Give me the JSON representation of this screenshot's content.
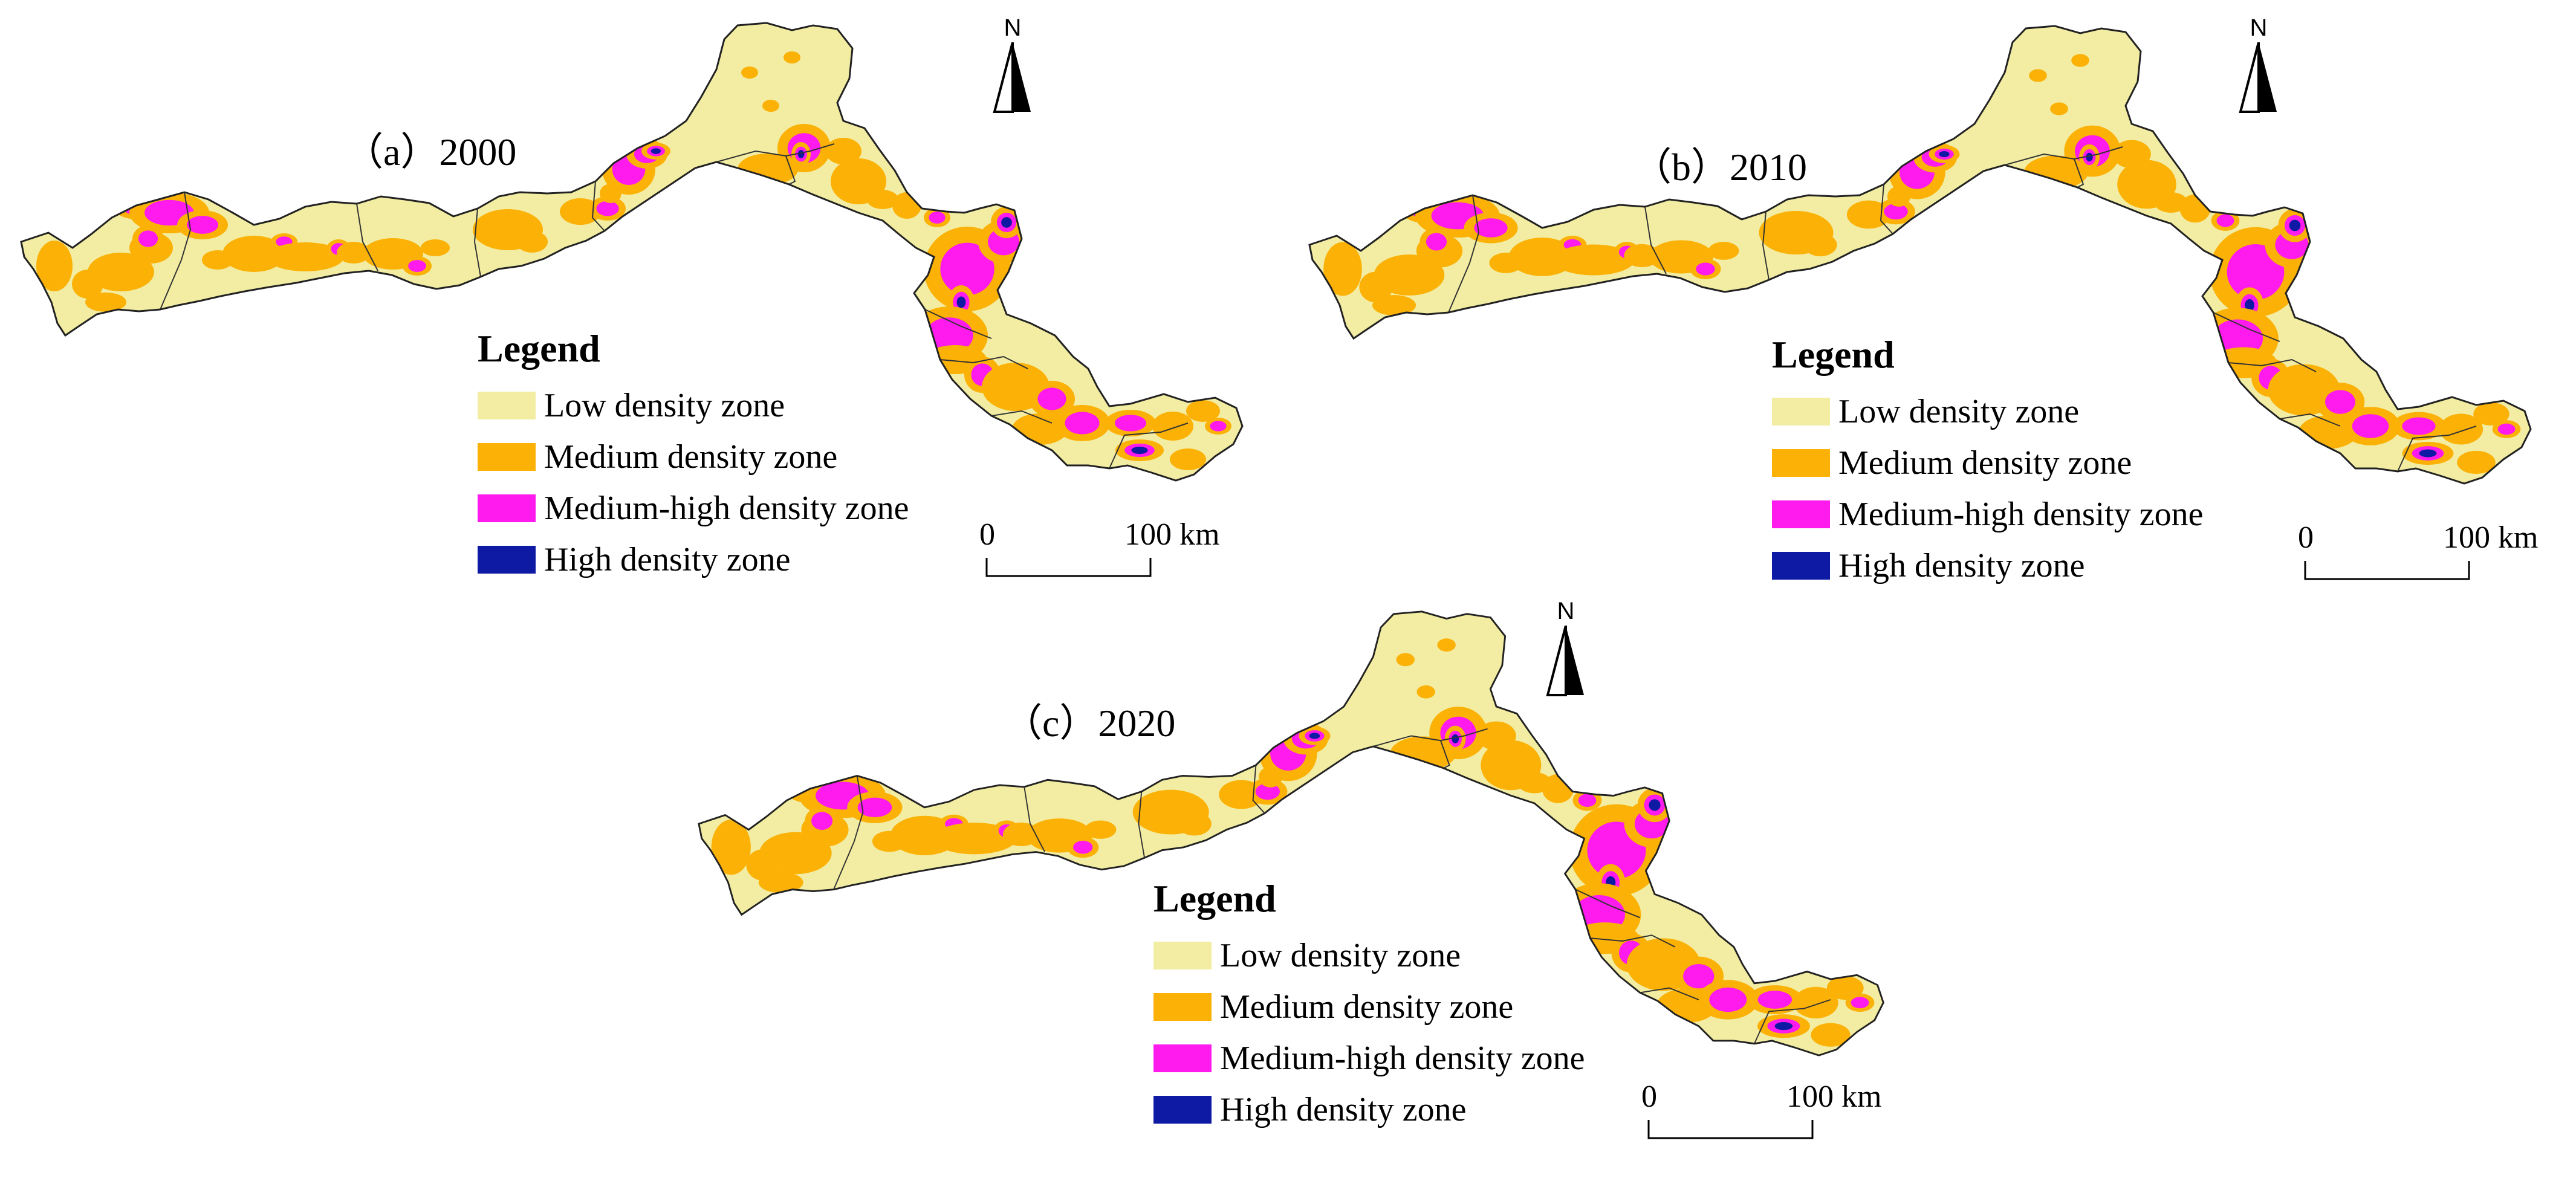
{
  "panels": [
    {
      "id": "a",
      "title": "（a）2000",
      "north_label": "N",
      "legend": {
        "title": "Legend",
        "items": [
          {
            "label": "Low density zone",
            "color": "#f2eda2"
          },
          {
            "label": "Medium density zone",
            "color": "#fbb106"
          },
          {
            "label": "Medium-high density zone",
            "color": "#ff1aee"
          },
          {
            "label": "High density zone",
            "color": "#0f1aa4"
          }
        ]
      },
      "scale": {
        "zero": "0",
        "distance": "100 km"
      }
    },
    {
      "id": "b",
      "title": "（b）2010",
      "north_label": "N",
      "legend": {
        "title": "Legend",
        "items": [
          {
            "label": "Low density zone",
            "color": "#f2eda2"
          },
          {
            "label": "Medium density zone",
            "color": "#fbb106"
          },
          {
            "label": "Medium-high density zone",
            "color": "#ff1aee"
          },
          {
            "label": "High density zone",
            "color": "#0f1aa4"
          }
        ]
      },
      "scale": {
        "zero": "0",
        "distance": "100 km"
      }
    },
    {
      "id": "c",
      "title": "（c）2020",
      "north_label": "N",
      "legend": {
        "title": "Legend",
        "items": [
          {
            "label": "Low density zone",
            "color": "#f2eda2"
          },
          {
            "label": "Medium density zone",
            "color": "#fbb106"
          },
          {
            "label": "Medium-high density zone",
            "color": "#ff1aee"
          },
          {
            "label": "High density zone",
            "color": "#0f1aa4"
          }
        ]
      },
      "scale": {
        "zero": "0",
        "distance": "100 km"
      }
    }
  ]
}
